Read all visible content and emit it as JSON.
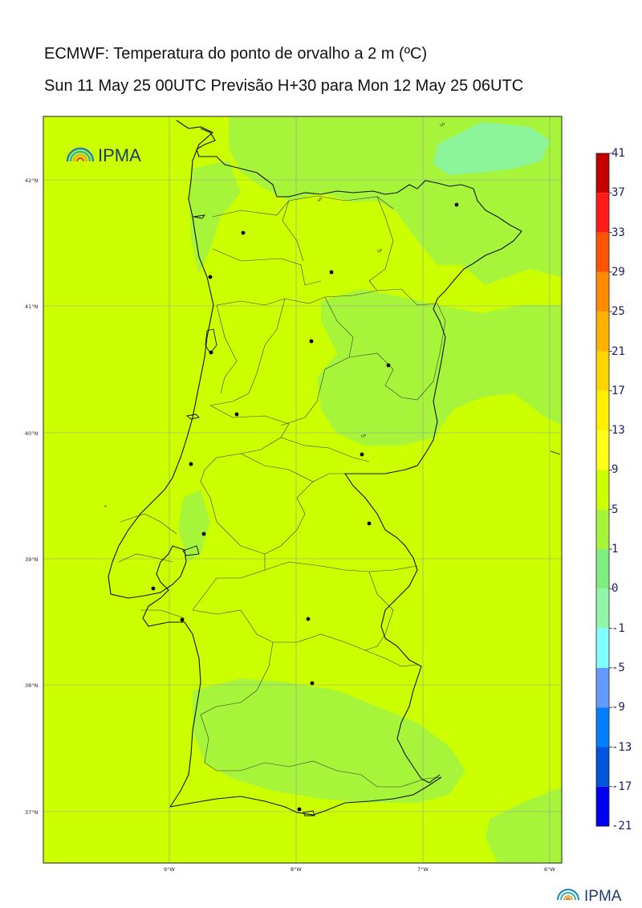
{
  "titles": {
    "line1": "ECMWF: Temperatura do ponto de orvalho a 2 m (ºC)",
    "line2": "Sun 11 May 25 00UTC Previsão H+30 para Mon 12 May 25 06UTC"
  },
  "map": {
    "lat_labels": [
      "42°N",
      "41°N",
      "40°N",
      "39°N",
      "38°N",
      "37°N"
    ],
    "lon_labels": [
      "9°W",
      "8°W",
      "7°W",
      "6°W"
    ],
    "contour_label": "5",
    "logo_text": "IPMA",
    "dominant_field_color": "#ccff00",
    "lighter_field_color": "#a6f53a",
    "coldest_field_color": "#8cf59a"
  },
  "colorbar": {
    "levels": [
      "41",
      "37",
      "33",
      "29",
      "25",
      "21",
      "17",
      "13",
      "9",
      "5",
      "1",
      "0",
      "-1",
      "-5",
      "-9",
      "-13",
      "-17",
      "-21"
    ],
    "colors": [
      "#c40000",
      "#ff1a1a",
      "#ff5500",
      "#ff8c00",
      "#ffb300",
      "#ffd500",
      "#fff000",
      "#ffff1a",
      "#ccff00",
      "#a6f53a",
      "#7fef7f",
      "#8ff5a8",
      "#80ffff",
      "#6699ff",
      "#0080ff",
      "#0055dd",
      "#0000ee",
      "#8800ff"
    ]
  },
  "footer": {
    "logo_text": "IPMA"
  }
}
